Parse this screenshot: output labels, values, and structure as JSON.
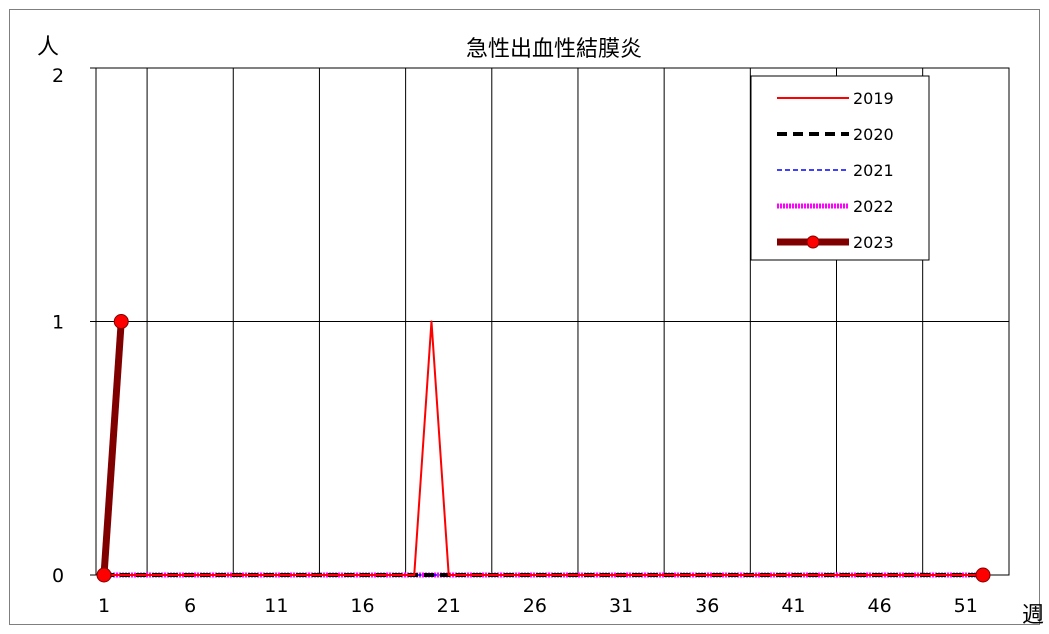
{
  "chart_data": {
    "type": "line",
    "title": "急性出血性結膜炎",
    "xlabel": "週",
    "ylabel": "人",
    "xlim": [
      1,
      52
    ],
    "ylim": [
      0,
      2
    ],
    "xticks": [
      1,
      6,
      11,
      16,
      21,
      26,
      31,
      36,
      41,
      46,
      51
    ],
    "yticks": [
      0,
      1,
      2
    ],
    "grid": true,
    "legend_position": "top-right",
    "series": [
      {
        "name": "2019",
        "color": "#ff0000",
        "style": "solid-thin",
        "x": [
          1,
          19,
          20,
          21,
          52
        ],
        "y": [
          0,
          0,
          1,
          0,
          0
        ]
      },
      {
        "name": "2020",
        "color": "#000000",
        "style": "dashed-thick",
        "x": [
          1,
          52
        ],
        "y": [
          0,
          0
        ]
      },
      {
        "name": "2021",
        "color": "#0000ff",
        "style": "dashed-thin",
        "x": [
          1,
          52
        ],
        "y": [
          0,
          0
        ]
      },
      {
        "name": "2022",
        "color": "#ff00ff",
        "style": "dotted-thick",
        "x": [
          1,
          52
        ],
        "y": [
          0,
          0
        ]
      },
      {
        "name": "2023",
        "color": "#800000",
        "style": "solid-thick-markers",
        "marker_color": "#ff0000",
        "x": [
          1,
          2
        ],
        "y": [
          0,
          1
        ],
        "extra_markers_x": [
          52
        ],
        "extra_markers_y": [
          0
        ]
      }
    ]
  }
}
